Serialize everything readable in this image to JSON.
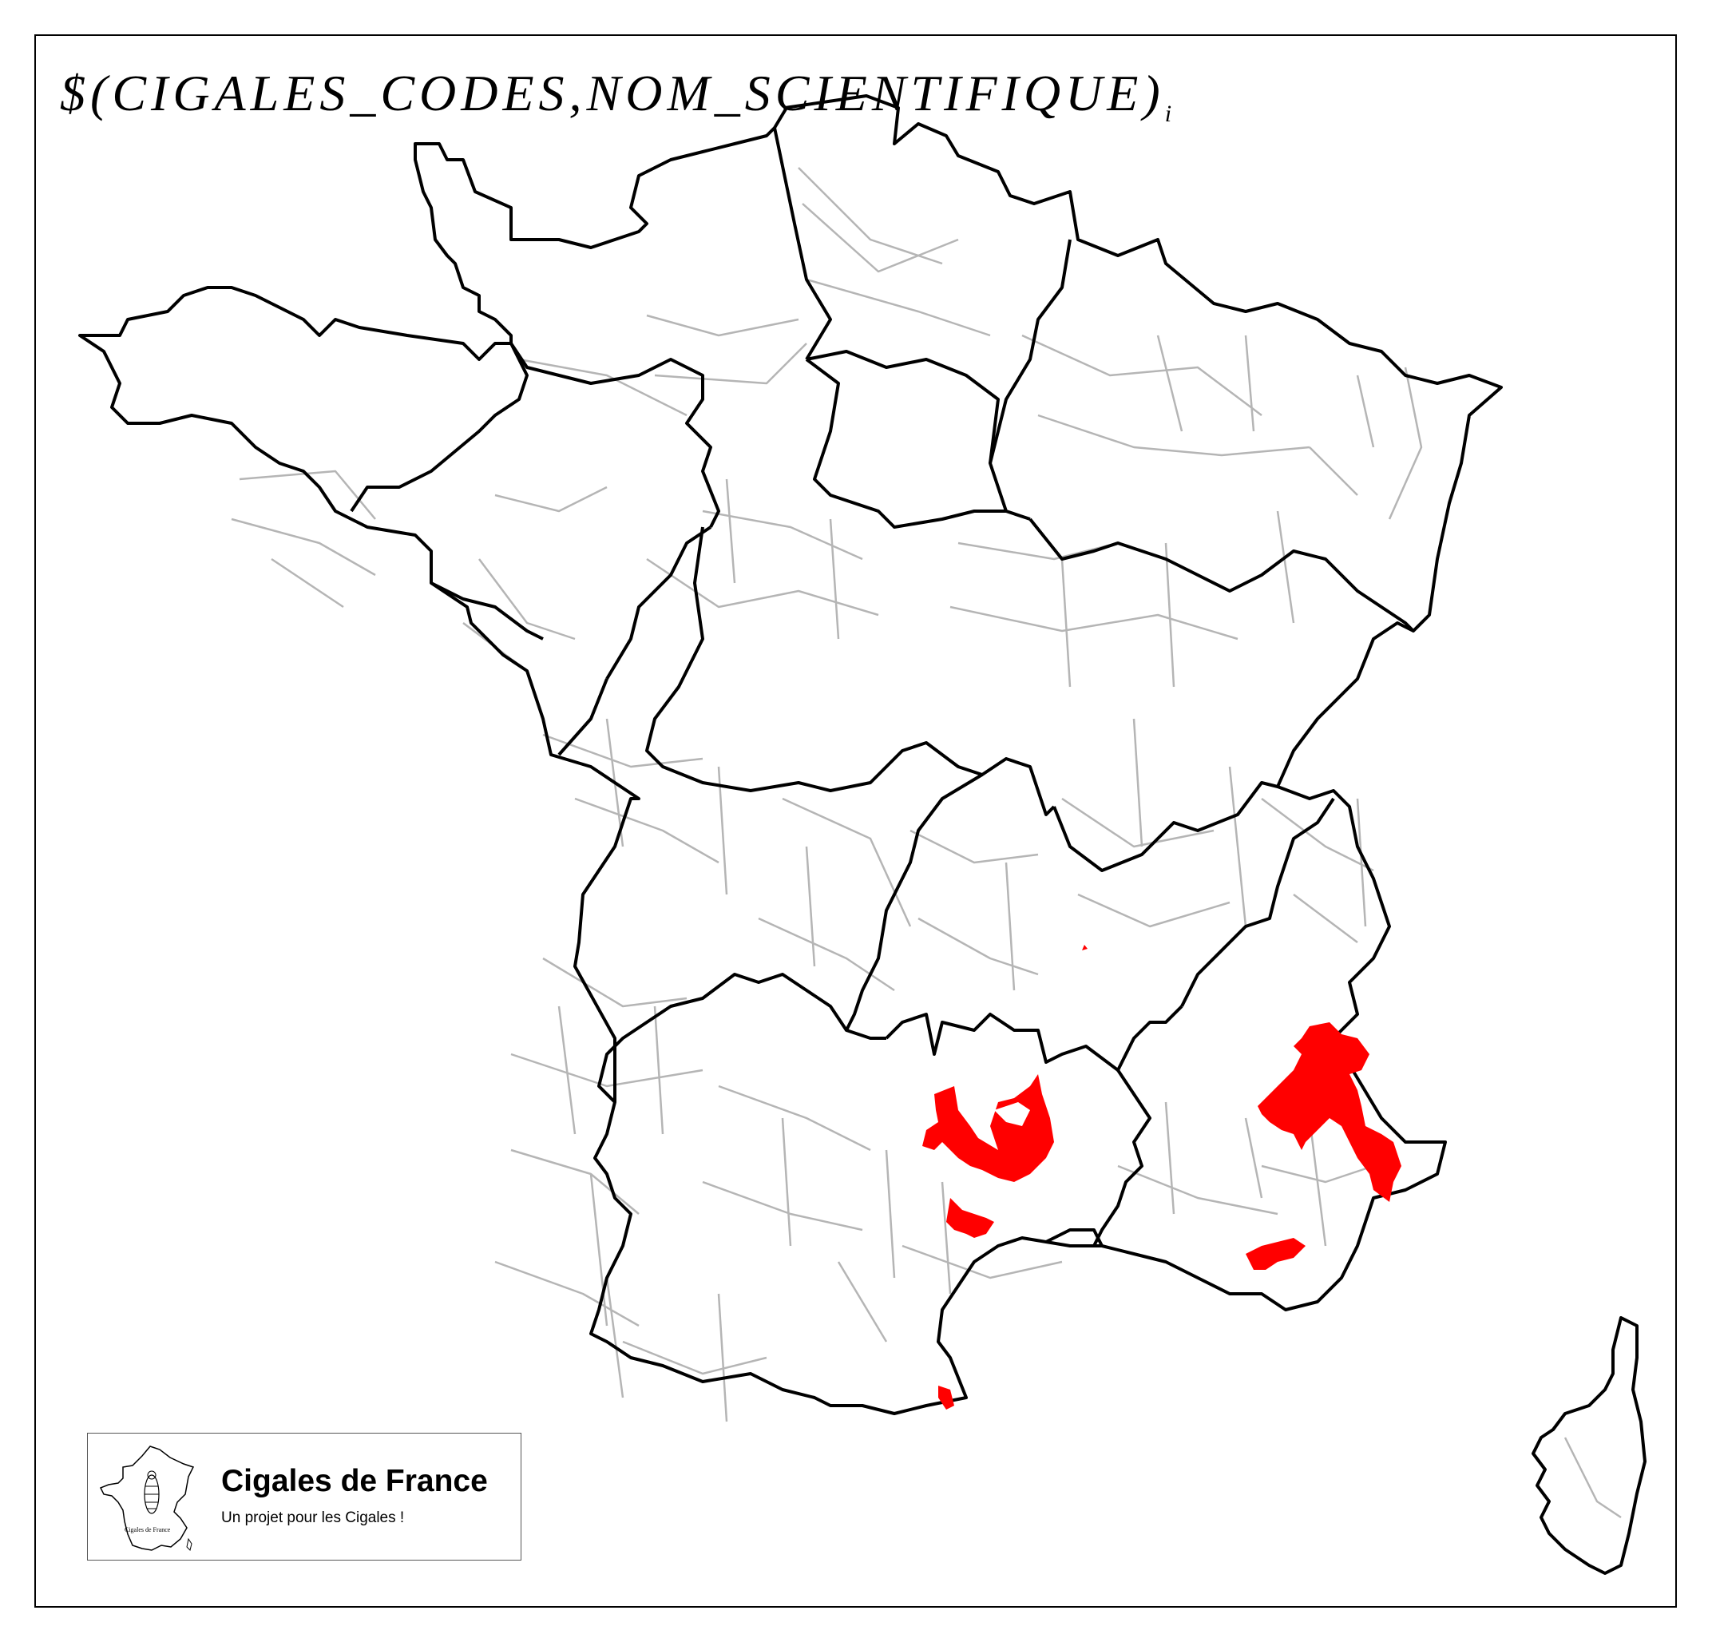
{
  "map": {
    "title": "$(CIGALES_CODES,NOM_SCIENTIFIQUE)",
    "title_subscript": "i",
    "colors": {
      "region_border": "#000000",
      "department_border": "#b5b5b5",
      "species_presence": "#ff0000",
      "background": "#ffffff"
    },
    "highlighted_areas": [
      "Massif central south (Lozère / Aveyron / Hérault)",
      "Alpes (Hautes-Alpes / Alpes-de-Haute-Provence)",
      "Var",
      "Pyrénées-Orientales coast"
    ]
  },
  "logo": {
    "name": "Cigales de France",
    "tagline": "Un projet pour les Cigales !",
    "caption": "Cigales de France",
    "icon": "france-map-cicada-icon"
  }
}
